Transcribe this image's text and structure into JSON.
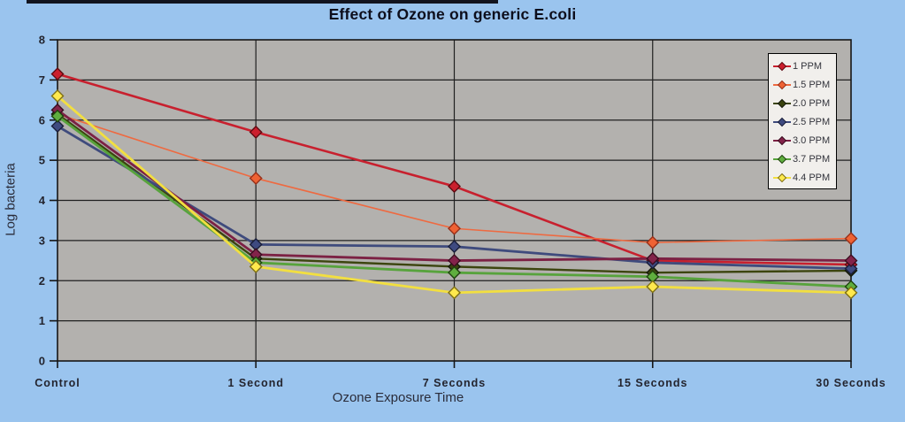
{
  "page": {
    "background_color": "#9ac4ee",
    "top_edge_bar_color": "#12141f"
  },
  "chart_data": {
    "type": "line",
    "title": "Effect of Ozone on generic E.coli",
    "xlabel": "Ozone Exposure Time",
    "ylabel": "Log bacteria",
    "categories": [
      "Control",
      "1 Second",
      "7 Seconds",
      "15 Seconds",
      "30 Seconds"
    ],
    "ylim": [
      0,
      8
    ],
    "yticks": [
      0,
      1,
      2,
      3,
      4,
      5,
      6,
      7,
      8
    ],
    "grid": true,
    "plot_background": "#b3b1ae",
    "gridline_color": "#202020",
    "legend": {
      "position": "top-right",
      "background": "#f1efec",
      "border": "#000000"
    },
    "series": [
      {
        "name": "1 PPM",
        "color": "#c8202e",
        "marker_fill": "#cb1f2d",
        "marker_stroke": "#5f0b12",
        "line_width": 2.6,
        "values": [
          7.15,
          5.7,
          4.35,
          2.5,
          2.4
        ]
      },
      {
        "name": "1.5 PPM",
        "color": "#ee6a41",
        "marker_fill": "#ef6234",
        "marker_stroke": "#97301a",
        "line_width": 1.6,
        "values": [
          6.15,
          4.55,
          3.3,
          2.95,
          3.05
        ]
      },
      {
        "name": "2.0 PPM",
        "color": "#3c450f",
        "marker_fill": "#3a430e",
        "marker_stroke": "#15190a",
        "line_width": 2.4,
        "values": [
          6.15,
          2.55,
          2.35,
          2.2,
          2.25
        ]
      },
      {
        "name": "2.5 PPM",
        "color": "#3f4b7d",
        "marker_fill": "#3e4a80",
        "marker_stroke": "#191e3a",
        "line_width": 2.8,
        "values": [
          5.85,
          2.9,
          2.85,
          2.45,
          2.3
        ]
      },
      {
        "name": "3.0 PPM",
        "color": "#7c2144",
        "marker_fill": "#83234a",
        "marker_stroke": "#3a0d1f",
        "line_width": 2.8,
        "values": [
          6.25,
          2.65,
          2.5,
          2.55,
          2.5
        ]
      },
      {
        "name": "3.7 PPM",
        "color": "#57a33c",
        "marker_fill": "#5fae3e",
        "marker_stroke": "#20420f",
        "line_width": 2.8,
        "values": [
          6.1,
          2.45,
          2.2,
          2.1,
          1.85
        ]
      },
      {
        "name": "4.4 PPM",
        "color": "#f2df40",
        "marker_fill": "#ffe94d",
        "marker_stroke": "#7e6f14",
        "line_width": 2.8,
        "values": [
          6.6,
          2.35,
          1.7,
          1.85,
          1.7
        ]
      }
    ]
  }
}
